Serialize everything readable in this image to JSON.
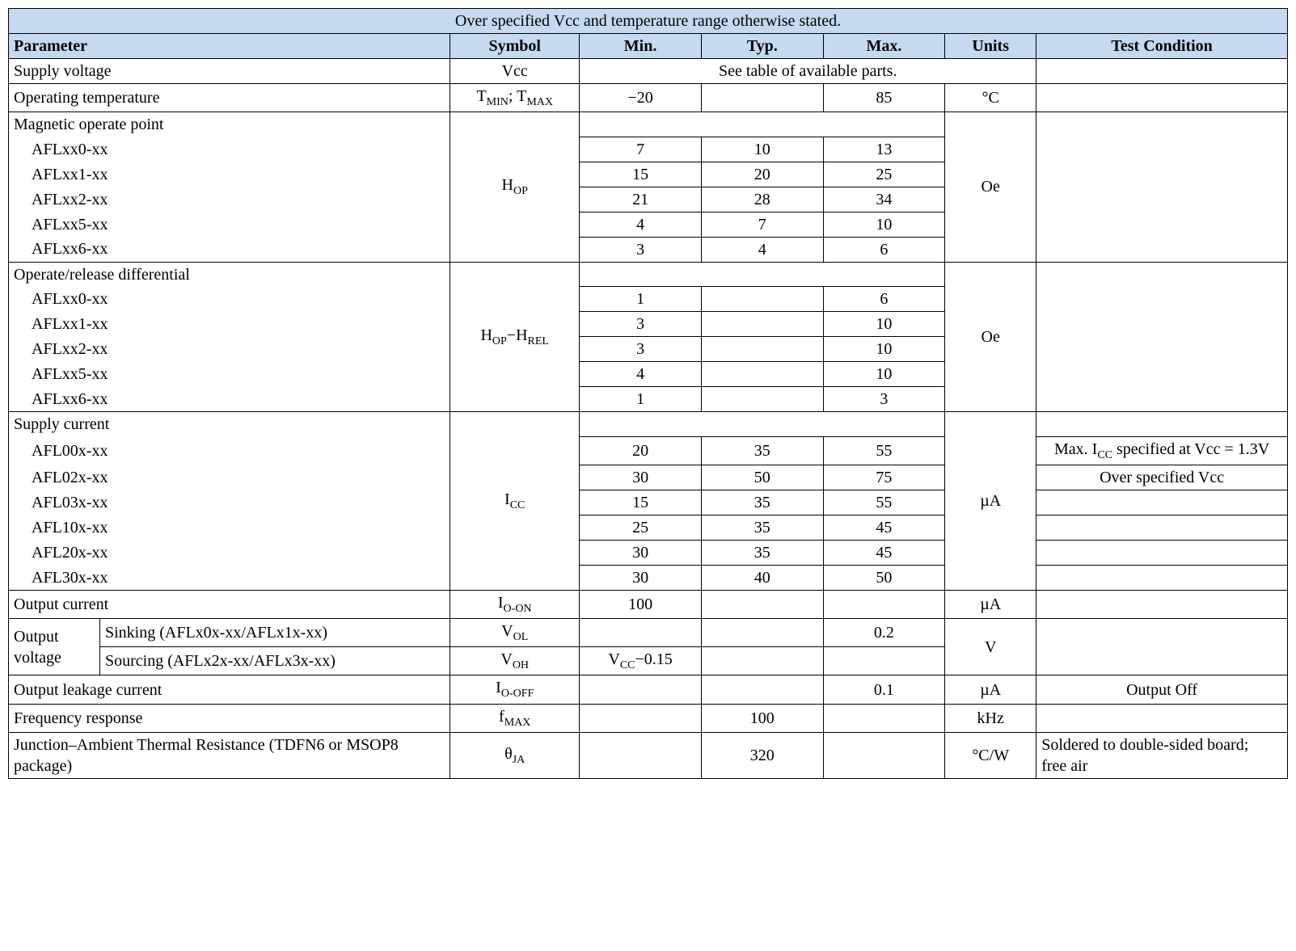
{
  "caption": "Over specified Vcc and temperature range otherwise stated.",
  "headers": {
    "parameter": "Parameter",
    "symbol": "Symbol",
    "min": "Min.",
    "typ": "Typ.",
    "max": "Max.",
    "units": "Units",
    "test_condition": "Test Condition"
  },
  "rows": {
    "supply_voltage": {
      "param": "Supply voltage",
      "symbol": "Vcc",
      "note": "See table of available parts."
    },
    "op_temp": {
      "param": "Operating temperature",
      "symbol_html": "T<sub>MIN</sub>; T<sub>MAX</sub>",
      "min": "−20",
      "max": "85",
      "units": "°C"
    },
    "mag_op": {
      "group_label": "Magnetic operate point",
      "symbol_html": "H<sub>OP</sub>",
      "units": "Oe",
      "items": [
        {
          "label": "AFLxx0-xx",
          "min": "7",
          "typ": "10",
          "max": "13"
        },
        {
          "label": "AFLxx1-xx",
          "min": "15",
          "typ": "20",
          "max": "25"
        },
        {
          "label": "AFLxx2-xx",
          "min": "21",
          "typ": "28",
          "max": "34"
        },
        {
          "label": "AFLxx5-xx",
          "min": "4",
          "typ": "7",
          "max": "10"
        },
        {
          "label": "AFLxx6-xx",
          "min": "3",
          "typ": "4",
          "max": "6"
        }
      ]
    },
    "op_rel": {
      "group_label": "Operate/release differential",
      "symbol_html": "H<sub>OP</sub>−H<sub>REL</sub>",
      "units": "Oe",
      "items": [
        {
          "label": "AFLxx0-xx",
          "min": "1",
          "max": "6"
        },
        {
          "label": "AFLxx1-xx",
          "min": "3",
          "max": "10"
        },
        {
          "label": "AFLxx2-xx",
          "min": "3",
          "max": "10"
        },
        {
          "label": "AFLxx5-xx",
          "min": "4",
          "max": "10"
        },
        {
          "label": "AFLxx6-xx",
          "min": "1",
          "max": "3"
        }
      ]
    },
    "supply_current": {
      "group_label": "Supply current",
      "symbol_html": "I<sub>CC</sub>",
      "units": "µA",
      "items": [
        {
          "label": "AFL00x-xx",
          "min": "20",
          "typ": "35",
          "max": "55",
          "tc_html": "Max. I<sub>CC</sub> specified at Vcc = 1.3V"
        },
        {
          "label": "AFL02x-xx",
          "min": "30",
          "typ": "50",
          "max": "75",
          "tc": "Over specified Vcc"
        },
        {
          "label": "AFL03x-xx",
          "min": "15",
          "typ": "35",
          "max": "55"
        },
        {
          "label": "AFL10x-xx",
          "min": "25",
          "typ": "35",
          "max": "45"
        },
        {
          "label": "AFL20x-xx",
          "min": "30",
          "typ": "35",
          "max": "45"
        },
        {
          "label": "AFL30x-xx",
          "min": "30",
          "typ": "40",
          "max": "50"
        }
      ]
    },
    "output_current": {
      "param": "Output current",
      "symbol_html": "I<sub>O-ON</sub>",
      "min": "100",
      "units": "µA"
    },
    "output_voltage": {
      "group_label": "Output voltage",
      "units": "V",
      "sink": {
        "label": "Sinking (AFLx0x-xx/AFLx1x-xx)",
        "symbol_html": "V<sub>OL</sub>",
        "max": "0.2"
      },
      "source": {
        "label": "Sourcing (AFLx2x-xx/AFLx3x-xx)",
        "symbol_html": "V<sub>OH</sub>",
        "min_html": "V<sub>CC</sub>−0.15"
      }
    },
    "output_leakage": {
      "param": "Output leakage current",
      "symbol_html": "I<sub>O-OFF</sub>",
      "max": "0.1",
      "units": "µA",
      "tc": "Output Off"
    },
    "freq_response": {
      "param": "Frequency response",
      "symbol_html": "f<sub>MAX</sub>",
      "typ": "100",
      "units": "kHz"
    },
    "thermal": {
      "param": "Junction–Ambient Thermal Resistance (TDFN6 or MSOP8 package)",
      "symbol_html": "θ<sub>JA</sub>",
      "typ": "320",
      "units": "°C/W",
      "tc": "Soldered to double-sided board;\nfree air"
    }
  },
  "style": {
    "header_bg": "#c5d9f1",
    "border_color": "#000000",
    "font_family": "Times New Roman",
    "font_size_pt": 15
  }
}
